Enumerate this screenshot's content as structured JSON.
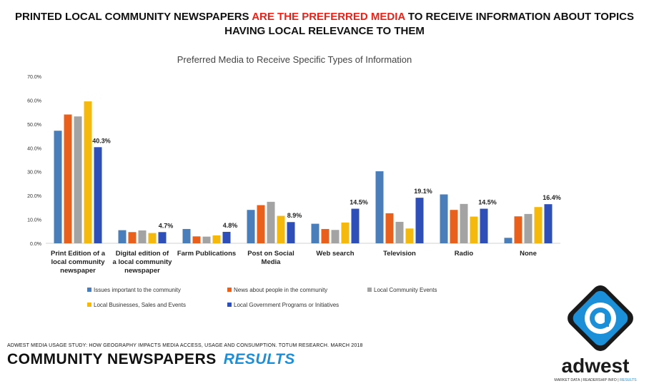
{
  "headline": {
    "part1": "PRINTED LOCAL COMMUNITY NEWSPAPERS ",
    "highlight": "ARE THE PREFERRED MEDIA",
    "part2": " TO RECEIVE INFORMATION ABOUT TOPICS",
    "line2": "HAVING LOCAL RELEVANCE TO THEM",
    "highlight_color": "#e8231a"
  },
  "chart_data": {
    "type": "bar",
    "title": "Preferred Media to Receive Specific Types of Information",
    "ylim": [
      0,
      70
    ],
    "yticks": [
      "0.0%",
      "10.0%",
      "20.0%",
      "30.0%",
      "40.0%",
      "50.0%",
      "60.0%",
      "70.0%"
    ],
    "grid": false,
    "legend_position": "bottom",
    "categories": [
      [
        "Print Edition of a",
        "local community",
        "newspaper"
      ],
      [
        "Digital edition of",
        "a local community",
        "newspaper"
      ],
      [
        "Farm Publications"
      ],
      [
        "Post on Social",
        "Media"
      ],
      [
        "Web search"
      ],
      [
        "Television"
      ],
      [
        "Radio"
      ],
      [
        "None"
      ]
    ],
    "series": [
      {
        "name": "Issues important to the community",
        "color": "#4a7ebb",
        "values": [
          47.2,
          5.5,
          6.0,
          14.0,
          8.2,
          30.2,
          20.5,
          2.3
        ]
      },
      {
        "name": "News about people in the community",
        "color": "#e8601c",
        "values": [
          54.0,
          4.7,
          2.9,
          16.0,
          6.0,
          12.6,
          14.0,
          11.3
        ]
      },
      {
        "name": "Local Community Events",
        "color": "#a3a3a3",
        "values": [
          53.2,
          5.4,
          2.8,
          17.4,
          5.6,
          9.0,
          16.5,
          12.3
        ]
      },
      {
        "name": "Local Businesses, Sales and Events",
        "color": "#f5b80c",
        "values": [
          59.5,
          4.3,
          3.3,
          11.5,
          8.7,
          6.2,
          11.2,
          15.2
        ]
      },
      {
        "name": "Local Government Programs or Initiatives",
        "color": "#2f4fb8",
        "values": [
          40.3,
          4.7,
          4.8,
          8.9,
          14.5,
          19.1,
          14.5,
          16.4
        ]
      }
    ],
    "data_labels": [
      "40.3%",
      "4.7%",
      "4.8%",
      "8.9%",
      "14.5%",
      "19.1%",
      "14.5%",
      "16.4%"
    ]
  },
  "source": "ADWEST MEDIA USAGE STUDY: HOW GEOGRAPHY IMPACTS MEDIA ACCESS, USAGE AND CONSUMPTION. TOTUM RESEARCH. MARCH 2018",
  "footer": {
    "brand": "COMMUNITY NEWSPAPERS",
    "results": "RESULTS"
  },
  "logo": {
    "wordmark": "adwest",
    "tagline_a": "MARKET DATA | READERSHIP INFO | ",
    "tagline_b": "RESULTS",
    "icon": "at-sign-icon",
    "colors": {
      "blue": "#1b8fd8",
      "dark": "#1a1a1a"
    }
  }
}
